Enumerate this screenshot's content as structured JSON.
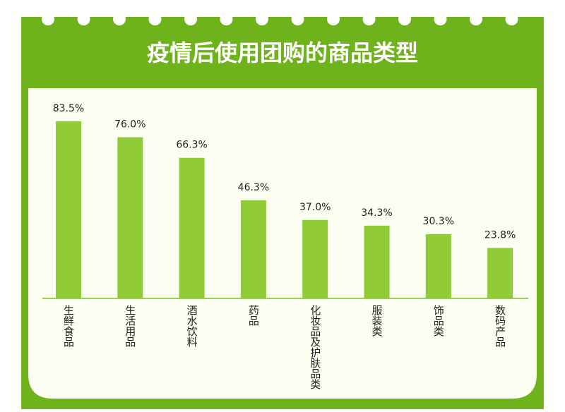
{
  "chart_data": {
    "type": "bar",
    "title": "疫情后使用团购的商品类型",
    "categories": [
      "生鲜食品",
      "生活用品",
      "酒水饮料",
      "药品",
      "化妆品及护肤品类",
      "服装类",
      "饰品类",
      "数码产品"
    ],
    "values": [
      83.5,
      76.0,
      66.3,
      46.3,
      37.0,
      34.3,
      30.3,
      23.8
    ],
    "value_labels": [
      "83.5%",
      "76.0%",
      "66.3%",
      "46.3%",
      "37.0%",
      "34.3%",
      "30.3%",
      "23.8%"
    ],
    "color": "#8fcc37"
  }
}
